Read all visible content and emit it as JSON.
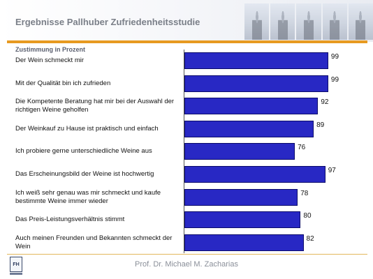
{
  "header": {
    "title": "Ergebnisse Pallhuber Zufriedenheitsstudie"
  },
  "chart_data": {
    "type": "bar",
    "orientation": "horizontal",
    "title": "",
    "subtitle": "Zustimmung in Prozent",
    "categories": [
      "Der Wein schmeckt mir",
      "Mit der Qualität bin ich zufrieden",
      "Die Kompetente Beratung hat mir bei der Auswahl der richtigen Weine geholfen",
      "Der Weinkauf zu Hause ist praktisch und einfach",
      "Ich probiere gerne unterschiedliche Weine aus",
      "Das Erscheinungsbild der Weine ist hochwertig",
      "Ich weiß sehr genau was mir schmeckt und kaufe bestimmte Weine immer wieder",
      "Das Preis-Leistungsverhältnis stimmt",
      "Auch meinen Freunden und Bekannten schmeckt der Wein"
    ],
    "values": [
      99,
      99,
      92,
      89,
      76,
      97,
      78,
      80,
      82
    ],
    "data_labels": [
      "99",
      "99",
      "92",
      "89",
      "76",
      "97",
      "78",
      "80",
      "82"
    ],
    "xlim": [
      0,
      100
    ],
    "grid": false,
    "bar_color": "#2828c4",
    "bar_edge_color": "#0b0b6a",
    "accent_color": "#e79a21"
  },
  "footer": {
    "author": "Prof. Dr. Michael M. Zacharias",
    "logo": "FH"
  }
}
